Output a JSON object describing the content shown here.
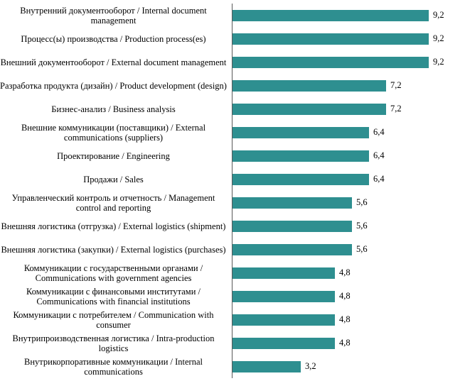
{
  "chart_data": {
    "type": "bar",
    "orientation": "horizontal",
    "title": "",
    "xlabel": "",
    "ylabel": "",
    "xlim": [
      0,
      10
    ],
    "grid": false,
    "legend": "none",
    "bar_color": "#2e8f90",
    "axis_color": "#595959",
    "decimal_separator": ",",
    "categories": [
      "Внутренний документооборот / Internal document management",
      "Процесс(ы) производства / Production process(es)",
      "Внешний документооборот / External document management",
      "Разработка продукта (дизайн) / Product development (design)",
      "Бизнес-анализ / Business analysis",
      "Внешние коммуникации (поставщики) / External communications (suppliers)",
      "Проектирование / Engineering",
      "Продажи / Sales",
      "Управленческий контроль и отчетность / Management control and reporting",
      "Внешняя логистика (отгрузка) / External logistics (shipment)",
      "Внешняя логистика (закупки) / External logistics (purchases)",
      "Коммуникации с государственными органами / Communications with government agencies",
      "Коммуникации с финансовыми институтами / Communications with financial institutions",
      "Коммуникации с потребителем / Communication with consumer",
      "Внутрипроизводственная логистика / Intra-production logistics",
      "Внутрикорпоративные коммуникации / Internal communications"
    ],
    "values": [
      9.2,
      9.2,
      9.2,
      7.2,
      7.2,
      6.4,
      6.4,
      6.4,
      5.6,
      5.6,
      5.6,
      4.8,
      4.8,
      4.8,
      4.8,
      3.2
    ],
    "value_labels": [
      "9,2",
      "9,2",
      "9,2",
      "7,2",
      "7,2",
      "6,4",
      "6,4",
      "6,4",
      "5,6",
      "5,6",
      "5,6",
      "4,8",
      "4,8",
      "4,8",
      "4,8",
      "3,2"
    ]
  }
}
